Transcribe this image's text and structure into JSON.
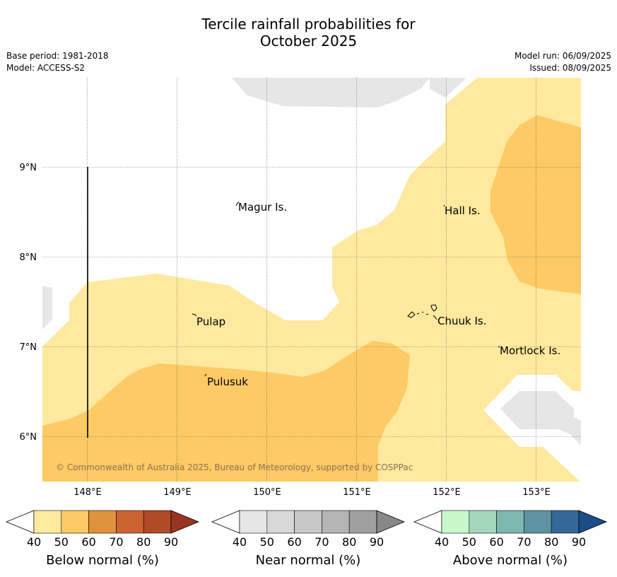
{
  "title_line1": "Tercile rainfall probabilities for",
  "title_line2": "October 2025",
  "base_period": "Base period: 1981-2018",
  "model": "Model: ACCESS-S2",
  "model_run": "Model run: 06/09/2025",
  "issued": "Issued: 08/09/2025",
  "copyright": "© Commonwealth of Australia 2025, Bureau of Meteorology, supported by COSPPac",
  "lat_labels": [
    "9°N",
    "8°N",
    "7°N",
    "6°N"
  ],
  "lon_labels": [
    "148°E",
    "149°E",
    "150°E",
    "151°E",
    "152°E",
    "153°E"
  ],
  "places": [
    "Magur Is.",
    "Hall Is.",
    "Pulap",
    "Chuuk Is.",
    "Mortlock Is.",
    "Pulusuk"
  ],
  "colorbars": [
    {
      "label": "Below normal (%)",
      "ticks": [
        "40",
        "50",
        "60",
        "70",
        "80",
        "90"
      ],
      "colors": [
        "#ffffff",
        "#fee99e",
        "#fdca65",
        "#e0923f",
        "#cc6330",
        "#b04a27",
        "#993421"
      ]
    },
    {
      "label": "Near normal (%)",
      "ticks": [
        "40",
        "50",
        "60",
        "70",
        "80",
        "90"
      ],
      "colors": [
        "#ffffff",
        "#e6e6e6",
        "#d8d8d8",
        "#c8c8c8",
        "#b4b4b4",
        "#a0a0a0",
        "#888888"
      ]
    },
    {
      "label": "Above normal (%)",
      "ticks": [
        "40",
        "50",
        "60",
        "70",
        "80",
        "90"
      ],
      "colors": [
        "#ffffff",
        "#c8f8cb",
        "#a3d8bc",
        "#7eb6b0",
        "#5d93a1",
        "#356898",
        "#1a4d86"
      ]
    }
  ]
}
